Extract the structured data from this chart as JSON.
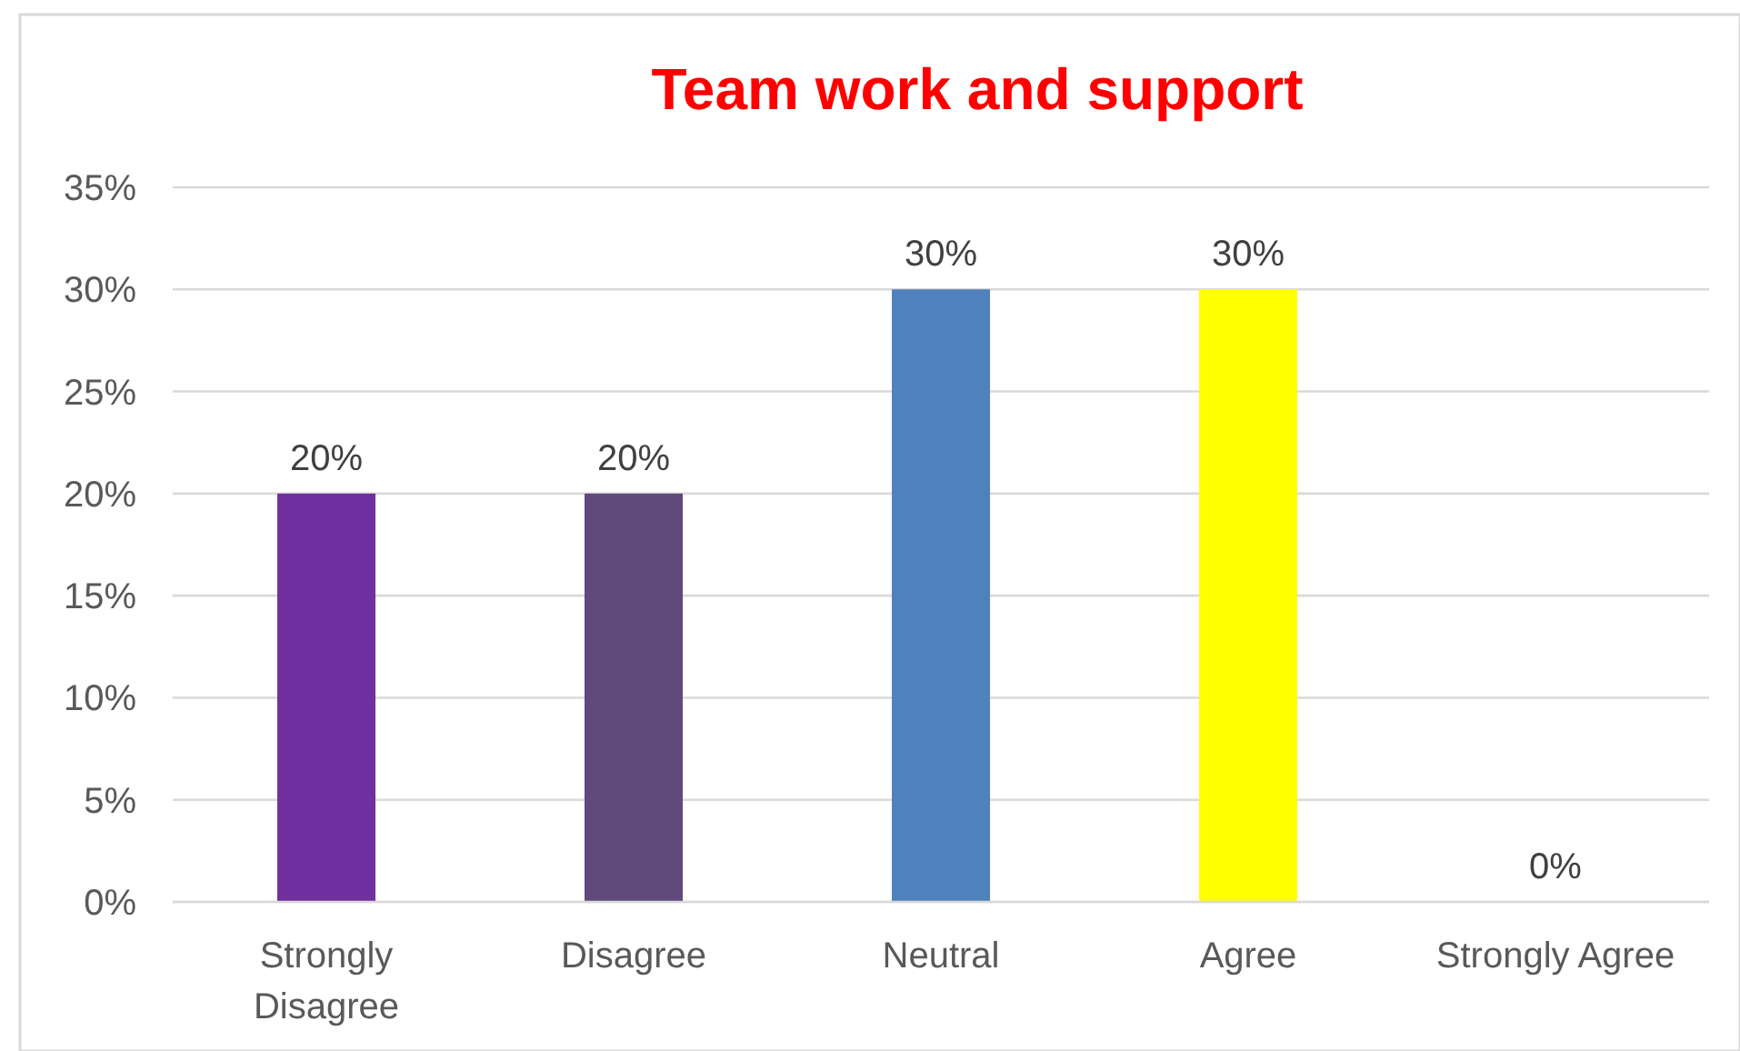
{
  "chart_data": {
    "type": "bar",
    "title": "Team work and support",
    "categories": [
      "Strongly Disagree",
      "Disagree",
      "Neutral",
      "Agree",
      "Strongly Agree"
    ],
    "values": [
      20,
      20,
      30,
      30,
      0
    ],
    "colors": [
      "#7030a0",
      "#604a7b",
      "#4f81bd",
      "#ffff00",
      "#4f81bd"
    ],
    "value_labels": [
      "20%",
      "20%",
      "30%",
      "30%",
      "0%"
    ],
    "ylim": [
      0,
      35
    ],
    "yticks": [
      {
        "value": 0,
        "label": "0%"
      },
      {
        "value": 5,
        "label": "5%"
      },
      {
        "value": 10,
        "label": "10%"
      },
      {
        "value": 15,
        "label": "15%"
      },
      {
        "value": 20,
        "label": "20%"
      },
      {
        "value": 25,
        "label": "25%"
      },
      {
        "value": 30,
        "label": "30%"
      },
      {
        "value": 35,
        "label": "35%"
      }
    ],
    "grid": "y"
  }
}
